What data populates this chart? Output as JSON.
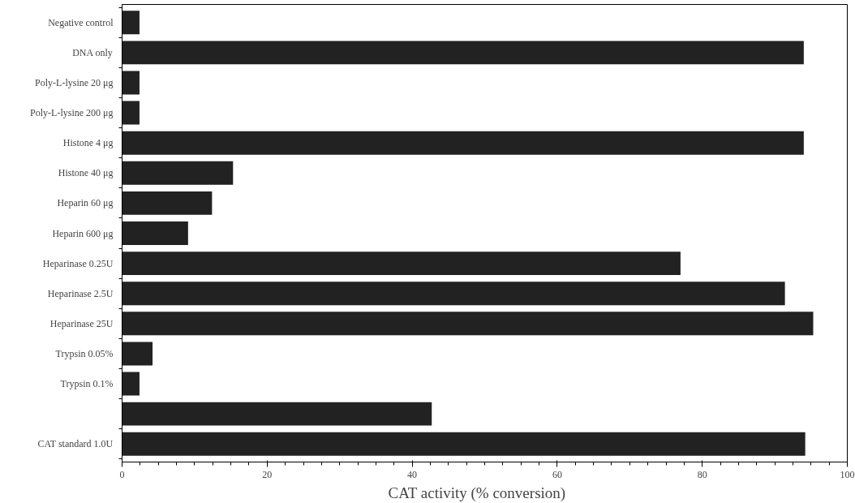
{
  "chart_data": {
    "type": "bar",
    "orientation": "horizontal",
    "xlabel": "CAT   activity   (% conversion)",
    "categories": [
      "Negative control",
      "DNA only",
      "Poly-L-lysine 20 μg",
      "Poly-L-lysine 200 μg",
      "Histone 4 μg",
      "Histone 40 μg",
      "Heparin 60 μg",
      "Heparin 600 μg",
      "Heparinase 0.25U",
      "Heparinase 2.5U",
      "Heparinase 25U",
      "Trypsin 0.05%",
      "Trypsin 0.1%",
      null,
      "CAT standard 1.0U"
    ],
    "values": [
      2.4,
      94.0,
      2.4,
      2.4,
      94.0,
      15.3,
      12.4,
      9.1,
      77.0,
      91.4,
      95.3,
      4.2,
      2.4,
      42.7,
      94.2
    ],
    "color": "#222222",
    "xlim": [
      0,
      100
    ],
    "xticks": [
      0,
      20,
      40,
      60,
      80,
      100
    ],
    "grid": false
  }
}
